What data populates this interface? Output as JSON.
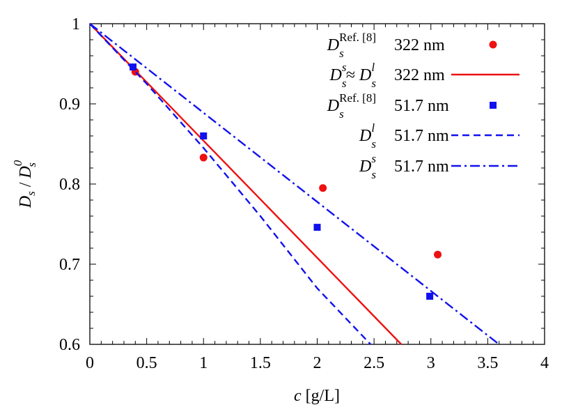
{
  "chart_data": {
    "type": "scatter",
    "title": "",
    "xlabel": {
      "var": "c",
      "unit": " [g/L]"
    },
    "ylabel": {
      "num": "D",
      "num_sub": "s",
      "den": "D",
      "den_sub": "s",
      "den_sup": "0"
    },
    "xlim": [
      0,
      4
    ],
    "ylim": [
      0.6,
      1.0
    ],
    "xticks": [
      "0",
      "0.5",
      "1",
      "1.5",
      "2",
      "2.5",
      "3",
      "3.5",
      "4"
    ],
    "yticks": [
      "0.6",
      "0.7",
      "0.8",
      "0.9",
      "1"
    ],
    "grid": false,
    "legend_position": "top-right",
    "series": [
      {
        "id": "ref-322",
        "kind": "points",
        "marker": "circle",
        "color": "#ee1111",
        "legend": {
          "sym": "D",
          "sub": "s",
          "sup": "Ref. [8]",
          "value": "322 nm"
        },
        "x": [
          0.4,
          1.0,
          2.05,
          3.06
        ],
        "y": [
          0.94,
          0.833,
          0.795,
          0.712
        ]
      },
      {
        "id": "line-322",
        "kind": "line",
        "dash": "solid",
        "color": "#ee1111",
        "legend": {
          "sym": "D",
          "sub": "s",
          "sup": "s",
          "approx": "≈",
          "sym2": "D",
          "sub2": "s",
          "sup2": "l",
          "value": "322 nm"
        },
        "x": [
          0,
          2.74
        ],
        "y": [
          1.0,
          0.6
        ]
      },
      {
        "id": "ref-517",
        "kind": "points",
        "marker": "square",
        "color": "#1111ee",
        "legend": {
          "sym": "D",
          "sub": "s",
          "sup": "Ref. [8]",
          "value": "51.7 nm"
        },
        "x": [
          0.38,
          1.0,
          2.0,
          2.99
        ],
        "y": [
          0.946,
          0.86,
          0.746,
          0.66
        ]
      },
      {
        "id": "dl-517",
        "kind": "line",
        "dash": "dashed",
        "color": "#1111ee",
        "legend": {
          "sym": "D",
          "sub": "s",
          "sup": "l",
          "value": "51.7 nm"
        },
        "x": [
          0,
          0.5,
          1.0,
          1.5,
          2.0,
          2.47
        ],
        "y": [
          1.0,
          0.925,
          0.845,
          0.76,
          0.67,
          0.6
        ]
      },
      {
        "id": "ds-517",
        "kind": "line",
        "dash": "dashdot",
        "color": "#1111ee",
        "legend": {
          "sym": "D",
          "sub": "s",
          "sup": "s",
          "value": "51.7 nm"
        },
        "x": [
          0,
          3.6
        ],
        "y": [
          1.0,
          0.6
        ]
      }
    ]
  }
}
